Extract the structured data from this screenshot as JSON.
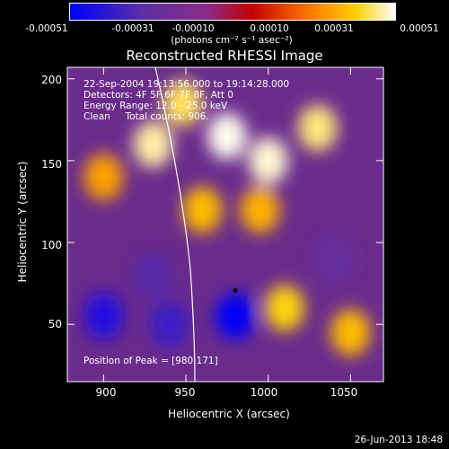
{
  "chart_data": {
    "type": "heatmap",
    "title": "Reconstructed RHESSI Image",
    "xlabel": "Heliocentric X (arcsec)",
    "ylabel": "Heliocentric Y (arcsec)",
    "xlim": [
      878,
      1070
    ],
    "ylim": [
      15,
      207
    ],
    "x_ticks": [
      900,
      950,
      1000,
      1050
    ],
    "y_ticks": [
      50,
      100,
      150,
      200
    ],
    "colorbar": {
      "min": -0.00051,
      "max": 0.00051,
      "tick_labels": [
        "-0.00051",
        "-0.00031",
        "-0.00010",
        "0.00010",
        "0.00031",
        "0.00051"
      ],
      "tick_values": [
        -0.00051,
        -0.00031,
        -0.0001,
        0.0001,
        0.00031,
        0.00051
      ],
      "unit": "(photons cm⁻² s⁻¹ asec⁻²)",
      "colors": [
        "#0000ff",
        "#5b2fa6",
        "#8a2a8a",
        "#c80000",
        "#ff7a00",
        "#ffd000",
        "#ffffff"
      ]
    },
    "peak": [
      980,
      171
    ],
    "features": [
      {
        "x": 930,
        "y": 160,
        "value": 0.00045
      },
      {
        "x": 948,
        "y": 185,
        "value": 0.0004
      },
      {
        "x": 975,
        "y": 165,
        "value": 0.0005
      },
      {
        "x": 1000,
        "y": 150,
        "value": 0.00048
      },
      {
        "x": 1030,
        "y": 170,
        "value": 0.00042
      },
      {
        "x": 960,
        "y": 120,
        "value": 0.0003
      },
      {
        "x": 995,
        "y": 120,
        "value": 0.00028
      },
      {
        "x": 900,
        "y": 140,
        "value": 0.00025
      },
      {
        "x": 1010,
        "y": 60,
        "value": 0.00035
      },
      {
        "x": 1050,
        "y": 45,
        "value": 0.0003
      },
      {
        "x": 900,
        "y": 55,
        "value": -0.00045
      },
      {
        "x": 940,
        "y": 50,
        "value": -0.0004
      },
      {
        "x": 980,
        "y": 55,
        "value": -0.0005
      },
      {
        "x": 930,
        "y": 80,
        "value": -0.00035
      },
      {
        "x": 1040,
        "y": 90,
        "value": -0.0003
      }
    ],
    "annotations": {
      "time_range": "22-Sep-2004 19:13:56.000 to 19:14:28.000",
      "detectors": "Detectors: 4F 5F 6F 7F 8F, Att 0",
      "energy_range": "Energy Range: 12.0 - 25.0 keV",
      "clean": "Clean     Total counts: 906.",
      "peak_label": "Position of Peak = [980,171]"
    }
  },
  "timestamp": "26-Jun-2013 18:48"
}
